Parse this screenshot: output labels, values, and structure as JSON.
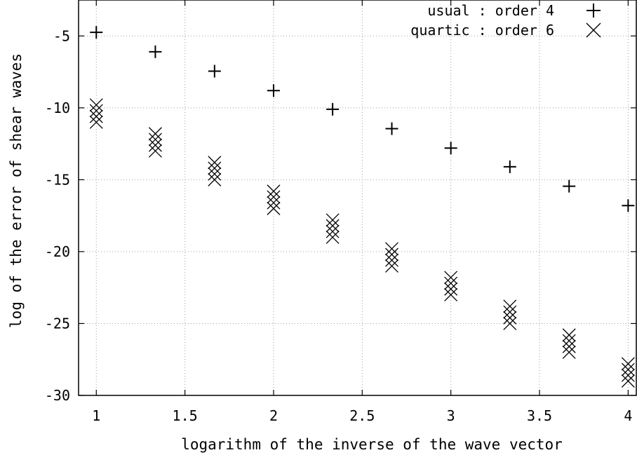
{
  "chart_data": {
    "type": "scatter",
    "xlabel": "logarithm of the inverse of the wave vector",
    "ylabel": "log  of the error of shear waves",
    "xlim": [
      0.9,
      4.05
    ],
    "ylim": [
      -30,
      -2.5
    ],
    "xticks": [
      1,
      1.5,
      2,
      2.5,
      3,
      3.5,
      4
    ],
    "xtick_labels": [
      "1",
      "1.5",
      "2",
      "2.5",
      "3",
      "3.5",
      "4"
    ],
    "yticks": [
      -5,
      -10,
      -15,
      -20,
      -25,
      -30
    ],
    "ytick_labels": [
      "-5",
      "-10",
      "-15",
      "-20",
      "-25",
      "-30"
    ],
    "grid": true,
    "legend_position": "top-right",
    "series": [
      {
        "name": "usual : order 4",
        "marker": "plus",
        "x": [
          1,
          1.333,
          1.667,
          2,
          2.333,
          2.667,
          3,
          3.333,
          3.667,
          4
        ],
        "y": [
          -4.75,
          -6.1,
          -7.45,
          -8.8,
          -10.1,
          -11.45,
          -12.8,
          -14.1,
          -15.45,
          -16.8
        ]
      },
      {
        "name": "quartic : order 6",
        "marker": "cross",
        "x": [
          1,
          1,
          1,
          1,
          1.333,
          1.333,
          1.333,
          1.333,
          1.667,
          1.667,
          1.667,
          1.667,
          2,
          2,
          2,
          2,
          2.333,
          2.333,
          2.333,
          2.333,
          2.667,
          2.667,
          2.667,
          2.667,
          3,
          3,
          3,
          3,
          3.333,
          3.333,
          3.333,
          3.333,
          3.667,
          3.667,
          3.667,
          3.667,
          4,
          4,
          4,
          4
        ],
        "y": [
          -9.8,
          -10.2,
          -10.6,
          -11.0,
          -11.8,
          -12.2,
          -12.6,
          -13.0,
          -13.8,
          -14.2,
          -14.6,
          -15.0,
          -15.8,
          -16.2,
          -16.6,
          -17.0,
          -17.8,
          -18.2,
          -18.6,
          -19.0,
          -19.8,
          -20.2,
          -20.6,
          -21.0,
          -21.8,
          -22.2,
          -22.6,
          -23.0,
          -23.8,
          -24.2,
          -24.6,
          -25.0,
          -25.8,
          -26.2,
          -26.6,
          -27.0,
          -27.8,
          -28.2,
          -28.6,
          -29.0
        ]
      }
    ]
  }
}
